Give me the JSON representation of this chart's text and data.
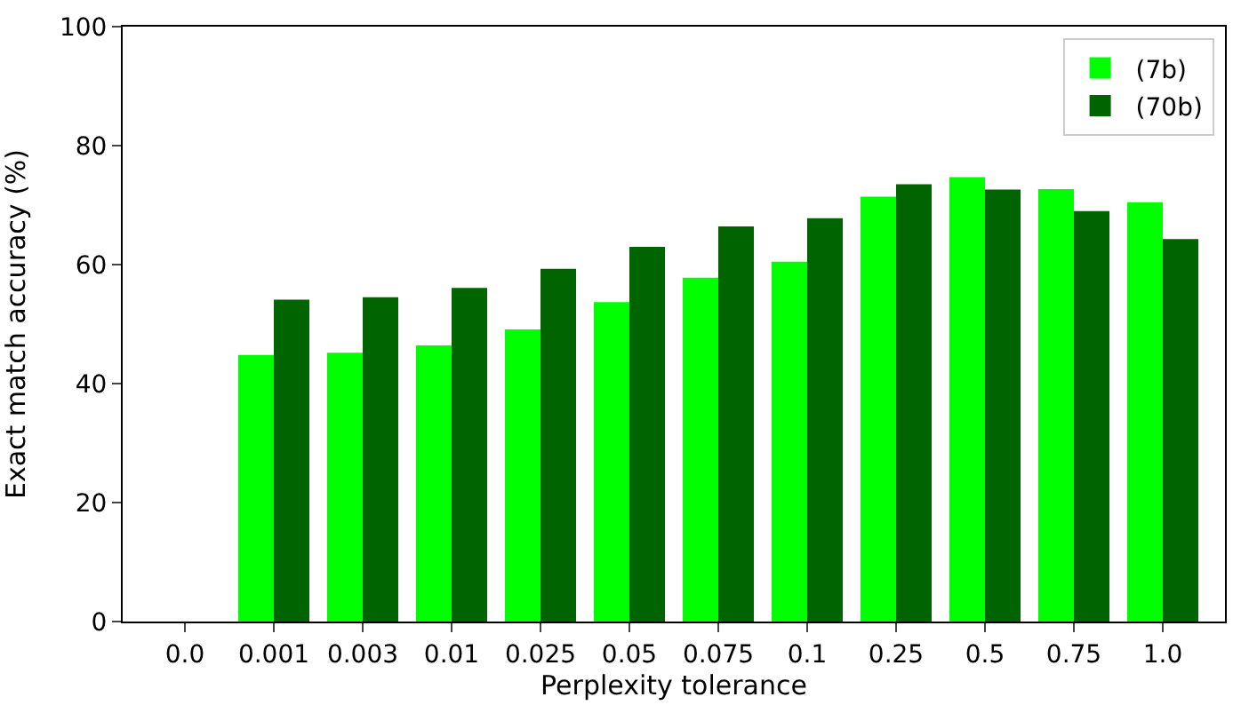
{
  "chart_data": {
    "type": "bar",
    "xlabel": "Perplexity tolerance",
    "ylabel": "Exact match accuracy (%)",
    "categories": [
      "0.0",
      "0.001",
      "0.003",
      "0.01",
      "0.025",
      "0.05",
      "0.075",
      "0.1",
      "0.25",
      "0.5",
      "0.75",
      "1.0"
    ],
    "series": [
      {
        "name": "(7b)",
        "color": "#00ff00",
        "values": [
          null,
          44.8,
          45.2,
          46.4,
          49.1,
          53.7,
          57.8,
          60.5,
          71.4,
          74.7,
          72.7,
          70.5
        ]
      },
      {
        "name": "(70b)",
        "color": "#006400",
        "values": [
          null,
          54.1,
          54.5,
          56.1,
          59.3,
          63.0,
          66.4,
          67.8,
          73.5,
          72.6,
          69.0,
          64.3
        ]
      }
    ],
    "ylim": [
      0,
      100
    ],
    "yticks": [
      0,
      20,
      40,
      60,
      80,
      100
    ],
    "legend": "top right"
  }
}
